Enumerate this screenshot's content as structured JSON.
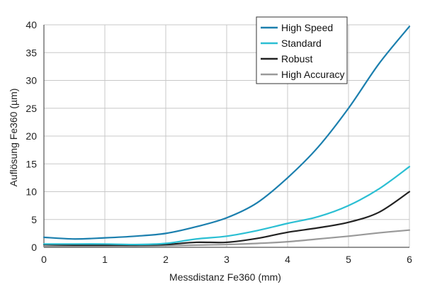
{
  "chart_data": {
    "type": "line",
    "xlabel": "Messdistanz Fe360 (mm)",
    "ylabel": "Auflösung Fe360 (µm)",
    "xlim": [
      0,
      6
    ],
    "ylim": [
      0,
      40
    ],
    "xticks": [
      0,
      1,
      2,
      3,
      4,
      5,
      6
    ],
    "yticks": [
      0,
      5,
      10,
      15,
      20,
      25,
      30,
      35,
      40
    ],
    "grid": true,
    "legend_position": "top-right",
    "series": [
      {
        "name": "High Speed",
        "color": "#1b7fae",
        "x": [
          0,
          0.5,
          1,
          1.5,
          2,
          2.5,
          3,
          3.5,
          4,
          4.5,
          5,
          5.5,
          6
        ],
        "y": [
          1.8,
          1.5,
          1.7,
          2.0,
          2.5,
          3.7,
          5.3,
          8.0,
          12.5,
          18.0,
          25.0,
          33.0,
          39.7
        ]
      },
      {
        "name": "Standard",
        "color": "#2bbfd3",
        "x": [
          0,
          0.5,
          1,
          1.5,
          2,
          2.5,
          3,
          3.5,
          4,
          4.5,
          5,
          5.5,
          6
        ],
        "y": [
          0.6,
          0.6,
          0.6,
          0.5,
          0.7,
          1.5,
          2.0,
          3.0,
          4.3,
          5.5,
          7.5,
          10.5,
          14.5
        ]
      },
      {
        "name": "Robust",
        "color": "#222222",
        "x": [
          0,
          0.5,
          1,
          1.5,
          2,
          2.5,
          3,
          3.5,
          4,
          4.5,
          5,
          5.5,
          6
        ],
        "y": [
          0.5,
          0.4,
          0.4,
          0.4,
          0.5,
          0.9,
          0.9,
          1.6,
          2.7,
          3.5,
          4.5,
          6.3,
          10.0
        ]
      },
      {
        "name": "High Accuracy",
        "color": "#999999",
        "x": [
          0,
          0.5,
          1,
          1.5,
          2,
          2.5,
          3,
          3.5,
          4,
          4.5,
          5,
          5.5,
          6
        ],
        "y": [
          0.2,
          0.2,
          0.2,
          0.2,
          0.3,
          0.4,
          0.5,
          0.7,
          1.0,
          1.5,
          2.0,
          2.6,
          3.1
        ]
      }
    ]
  }
}
